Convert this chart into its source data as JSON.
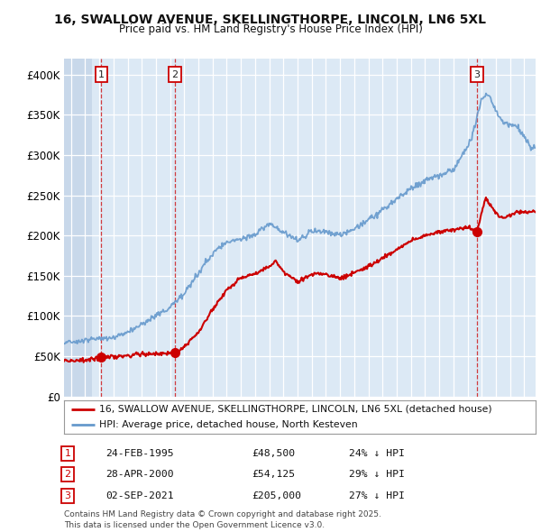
{
  "title": "16, SWALLOW AVENUE, SKELLINGTHORPE, LINCOLN, LN6 5XL",
  "subtitle": "Price paid vs. HM Land Registry's House Price Index (HPI)",
  "ylim": [
    0,
    420000
  ],
  "yticks": [
    0,
    50000,
    100000,
    150000,
    200000,
    250000,
    300000,
    350000,
    400000
  ],
  "ytick_labels": [
    "£0",
    "£50K",
    "£100K",
    "£150K",
    "£200K",
    "£250K",
    "£300K",
    "£350K",
    "£400K"
  ],
  "bg_color": "#dce9f5",
  "hatch_color": "#c8d8ea",
  "grid_color": "#ffffff",
  "red_line_color": "#cc0000",
  "blue_line_color": "#6699cc",
  "sale1_x": 1995.15,
  "sale1_y": 48500,
  "sale2_x": 2000.32,
  "sale2_y": 54125,
  "sale3_x": 2021.67,
  "sale3_y": 205000,
  "legend_red": "16, SWALLOW AVENUE, SKELLINGTHORPE, LINCOLN, LN6 5XL (detached house)",
  "legend_blue": "HPI: Average price, detached house, North Kesteven",
  "table_rows": [
    {
      "num": 1,
      "date": "24-FEB-1995",
      "price": "£48,500",
      "hpi": "24% ↓ HPI"
    },
    {
      "num": 2,
      "date": "28-APR-2000",
      "price": "£54,125",
      "hpi": "29% ↓ HPI"
    },
    {
      "num": 3,
      "date": "02-SEP-2021",
      "price": "£205,000",
      "hpi": "27% ↓ HPI"
    }
  ],
  "footer": "Contains HM Land Registry data © Crown copyright and database right 2025.\nThis data is licensed under the Open Government Licence v3.0.",
  "xlim_start": 1992.5,
  "xlim_end": 2025.8,
  "hatch_end_x": 1994.5
}
